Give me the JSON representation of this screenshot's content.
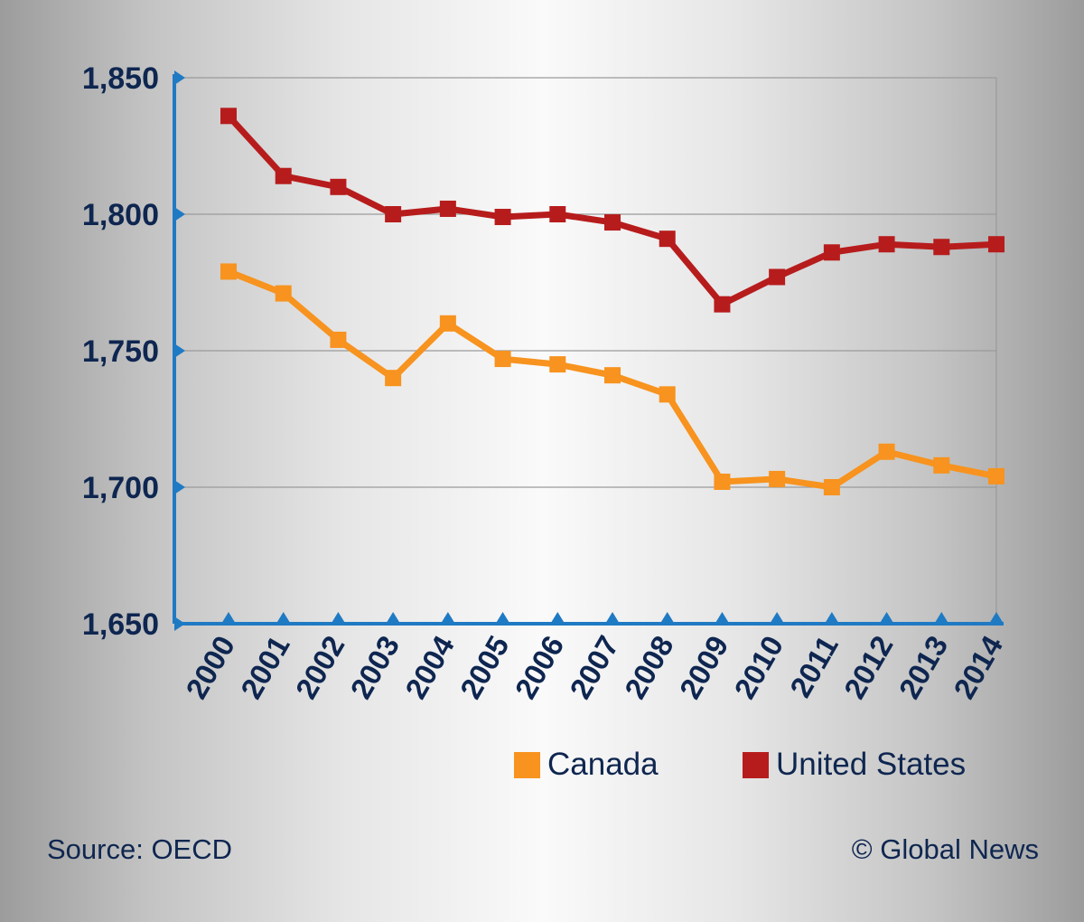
{
  "chart_data": {
    "type": "line",
    "x": [
      2000,
      2001,
      2002,
      2003,
      2004,
      2005,
      2006,
      2007,
      2008,
      2009,
      2010,
      2011,
      2012,
      2013,
      2014
    ],
    "x_tick_labels": [
      "2000",
      "2001",
      "2002",
      "2003",
      "2004",
      "2005",
      "2006",
      "2007",
      "2008",
      "2009",
      "2010",
      "2011",
      "2012",
      "2013",
      "2014"
    ],
    "ylim": [
      1650,
      1850
    ],
    "y_ticks": [
      1650,
      1700,
      1750,
      1800,
      1850
    ],
    "y_tick_labels": [
      "1,650",
      "1,700",
      "1,750",
      "1,800",
      "1,850"
    ],
    "grid": true,
    "legend_position": "bottom-right",
    "series": [
      {
        "name": "Canada",
        "color": "#f7931e",
        "values": [
          1779,
          1771,
          1754,
          1740,
          1760,
          1747,
          1745,
          1741,
          1734,
          1702,
          1703,
          1700,
          1713,
          1708,
          1704
        ]
      },
      {
        "name": "United States",
        "color": "#b71c1c",
        "values": [
          1836,
          1814,
          1810,
          1800,
          1802,
          1799,
          1800,
          1797,
          1791,
          1767,
          1777,
          1786,
          1789,
          1788,
          1789
        ]
      }
    ]
  },
  "legend": {
    "canada_label": "Canada",
    "us_label": "United States"
  },
  "footer": {
    "source": "Source: OECD",
    "credit": "© Global News"
  },
  "colors": {
    "axis": "#1f7ac4",
    "text": "#0e2650",
    "grid": "#9a9a9a"
  }
}
